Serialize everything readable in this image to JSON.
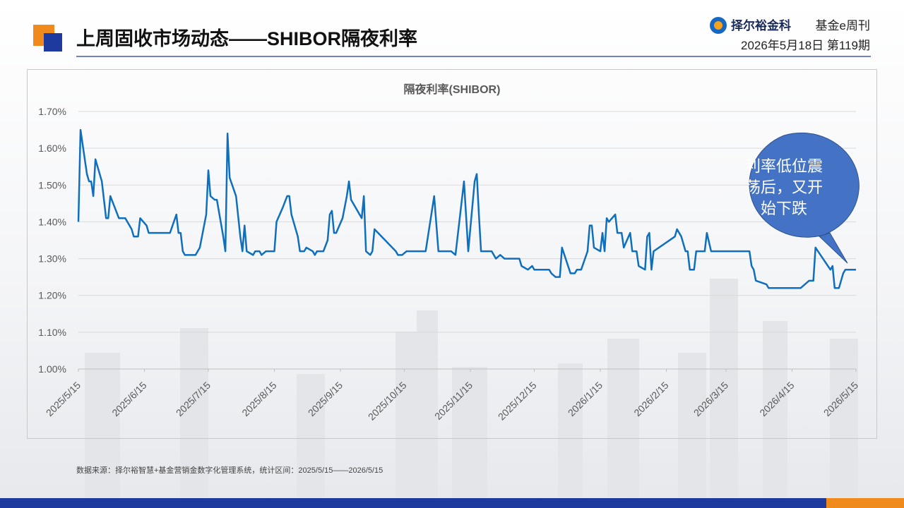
{
  "header": {
    "title": "上周固收市场动态——SHIBOR隔夜利率",
    "brand": "择尔裕金科",
    "publication": "基金e周刊",
    "issue": "2026年5月18日  第119期"
  },
  "chart_data": {
    "type": "line",
    "title": "隔夜利率(SHIBOR)",
    "annotation": "利率低位震荡后，又开始下跌",
    "xlim": [
      "2025/5/15",
      "2026/5/15"
    ],
    "xticks": [
      "2025/5/15",
      "2025/6/15",
      "2025/7/15",
      "2025/8/15",
      "2025/9/15",
      "2025/10/15",
      "2025/11/15",
      "2025/12/15",
      "2026/1/15",
      "2026/2/15",
      "2026/3/15",
      "2026/4/15",
      "2026/5/15"
    ],
    "ylim": [
      1.0,
      1.7
    ],
    "yticks": [
      {
        "value": 1.0,
        "label": "1.00%"
      },
      {
        "value": 1.1,
        "label": "1.10%"
      },
      {
        "value": 1.2,
        "label": "1.20%"
      },
      {
        "value": 1.3,
        "label": "1.30%"
      },
      {
        "value": 1.4,
        "label": "1.40%"
      },
      {
        "value": 1.5,
        "label": "1.50%"
      },
      {
        "value": 1.6,
        "label": "1.60%"
      },
      {
        "value": 1.7,
        "label": "1.70%"
      }
    ],
    "grid": true,
    "x": [
      "2025/5/15",
      "2025/5/16",
      "2025/5/19",
      "2025/5/20",
      "2025/5/21",
      "2025/5/22",
      "2025/5/23",
      "2025/5/26",
      "2025/5/28",
      "2025/5/29",
      "2025/5/30",
      "2025/6/3",
      "2025/6/6",
      "2025/6/9",
      "2025/6/10",
      "2025/6/12",
      "2025/6/13",
      "2025/6/16",
      "2025/6/17",
      "2025/6/27",
      "2025/6/30",
      "2025/7/1",
      "2025/7/2",
      "2025/7/3",
      "2025/7/4",
      "2025/7/9",
      "2025/7/11",
      "2025/7/14",
      "2025/7/15",
      "2025/7/16",
      "2025/7/18",
      "2025/7/19",
      "2025/7/22",
      "2025/7/23",
      "2025/7/24",
      "2025/7/25",
      "2025/7/28",
      "2025/7/30",
      "2025/7/31",
      "2025/8/1",
      "2025/8/2",
      "2025/8/5",
      "2025/8/6",
      "2025/8/8",
      "2025/8/9",
      "2025/8/11",
      "2025/8/15",
      "2025/8/16",
      "2025/8/19",
      "2025/8/21",
      "2025/8/22",
      "2025/8/23",
      "2025/8/26",
      "2025/8/27",
      "2025/8/29",
      "2025/8/30",
      "2025/9/2",
      "2025/9/3",
      "2025/9/4",
      "2025/9/7",
      "2025/9/9",
      "2025/9/10",
      "2025/9/11",
      "2025/9/12",
      "2025/9/13",
      "2025/9/16",
      "2025/9/18",
      "2025/9/19",
      "2025/9/20",
      "2025/9/23",
      "2025/9/25",
      "2025/9/26",
      "2025/9/27",
      "2025/9/29",
      "2025/9/30",
      "2025/10/1",
      "2025/10/11",
      "2025/10/12",
      "2025/10/14",
      "2025/10/16",
      "2025/10/25",
      "2025/10/29",
      "2025/10/31",
      "2025/11/6",
      "2025/11/8",
      "2025/11/12",
      "2025/11/14",
      "2025/11/17",
      "2025/11/18",
      "2025/11/19",
      "2025/11/20",
      "2025/11/25",
      "2025/11/27",
      "2025/11/29",
      "2025/12/1",
      "2025/12/8",
      "2025/12/9",
      "2025/12/12",
      "2025/12/14",
      "2025/12/15",
      "2025/12/22",
      "2025/12/23",
      "2025/12/25",
      "2025/12/27",
      "2025/12/28",
      "2026/1/1",
      "2026/1/3",
      "2026/1/4",
      "2026/1/6",
      "2026/1/9",
      "2026/1/10",
      "2026/1/11",
      "2026/1/12",
      "2026/1/15",
      "2026/1/16",
      "2026/1/17",
      "2026/1/18",
      "2026/1/19",
      "2026/1/22",
      "2026/1/23",
      "2026/1/25",
      "2026/1/26",
      "2026/1/29",
      "2026/1/30",
      "2026/2/1",
      "2026/2/2",
      "2026/2/5",
      "2026/2/6",
      "2026/2/7",
      "2026/2/8",
      "2026/2/9",
      "2026/2/19",
      "2026/2/20",
      "2026/2/22",
      "2026/2/24",
      "2026/2/25",
      "2026/2/26",
      "2026/2/28",
      "2026/3/1",
      "2026/3/5",
      "2026/3/6",
      "2026/3/8",
      "2026/3/26",
      "2026/3/27",
      "2026/3/28",
      "2026/3/29",
      "2026/4/3",
      "2026/4/4",
      "2026/4/19",
      "2026/4/23",
      "2026/4/25",
      "2026/4/26",
      "2026/5/3",
      "2026/5/4",
      "2026/5/5",
      "2026/5/7",
      "2026/5/9",
      "2026/5/10",
      "2026/5/15"
    ],
    "series": [
      {
        "name": "隔夜利率",
        "color": "#0f6fbd",
        "values": [
          1.4,
          1.65,
          1.53,
          1.51,
          1.51,
          1.47,
          1.57,
          1.51,
          1.41,
          1.41,
          1.47,
          1.41,
          1.41,
          1.38,
          1.36,
          1.36,
          1.41,
          1.39,
          1.37,
          1.37,
          1.42,
          1.37,
          1.37,
          1.32,
          1.31,
          1.31,
          1.33,
          1.42,
          1.54,
          1.47,
          1.46,
          1.46,
          1.36,
          1.32,
          1.64,
          1.52,
          1.47,
          1.36,
          1.32,
          1.39,
          1.32,
          1.31,
          1.32,
          1.32,
          1.31,
          1.32,
          1.32,
          1.4,
          1.44,
          1.47,
          1.47,
          1.42,
          1.36,
          1.32,
          1.32,
          1.33,
          1.32,
          1.31,
          1.32,
          1.32,
          1.35,
          1.42,
          1.43,
          1.37,
          1.37,
          1.41,
          1.47,
          1.51,
          1.46,
          1.43,
          1.41,
          1.47,
          1.32,
          1.31,
          1.32,
          1.38,
          1.32,
          1.31,
          1.31,
          1.32,
          1.32,
          1.47,
          1.32,
          1.32,
          1.31,
          1.51,
          1.32,
          1.51,
          1.53,
          1.42,
          1.32,
          1.32,
          1.3,
          1.31,
          1.3,
          1.3,
          1.28,
          1.27,
          1.28,
          1.27,
          1.27,
          1.26,
          1.25,
          1.25,
          1.33,
          1.26,
          1.26,
          1.27,
          1.27,
          1.32,
          1.39,
          1.39,
          1.33,
          1.32,
          1.37,
          1.32,
          1.41,
          1.4,
          1.42,
          1.37,
          1.37,
          1.33,
          1.37,
          1.32,
          1.32,
          1.28,
          1.27,
          1.36,
          1.37,
          1.27,
          1.32,
          1.36,
          1.38,
          1.36,
          1.32,
          1.32,
          1.27,
          1.27,
          1.32,
          1.32,
          1.37,
          1.32,
          1.32,
          1.28,
          1.27,
          1.24,
          1.23,
          1.22,
          1.22,
          1.24,
          1.24,
          1.33,
          1.27,
          1.28,
          1.22,
          1.22,
          1.26,
          1.27,
          1.27
        ]
      }
    ]
  },
  "footer": {
    "source": "数据来源：择尔裕智慧+基金营销金数字化管理系统，统计区间：2025/5/15——2026/5/15"
  }
}
